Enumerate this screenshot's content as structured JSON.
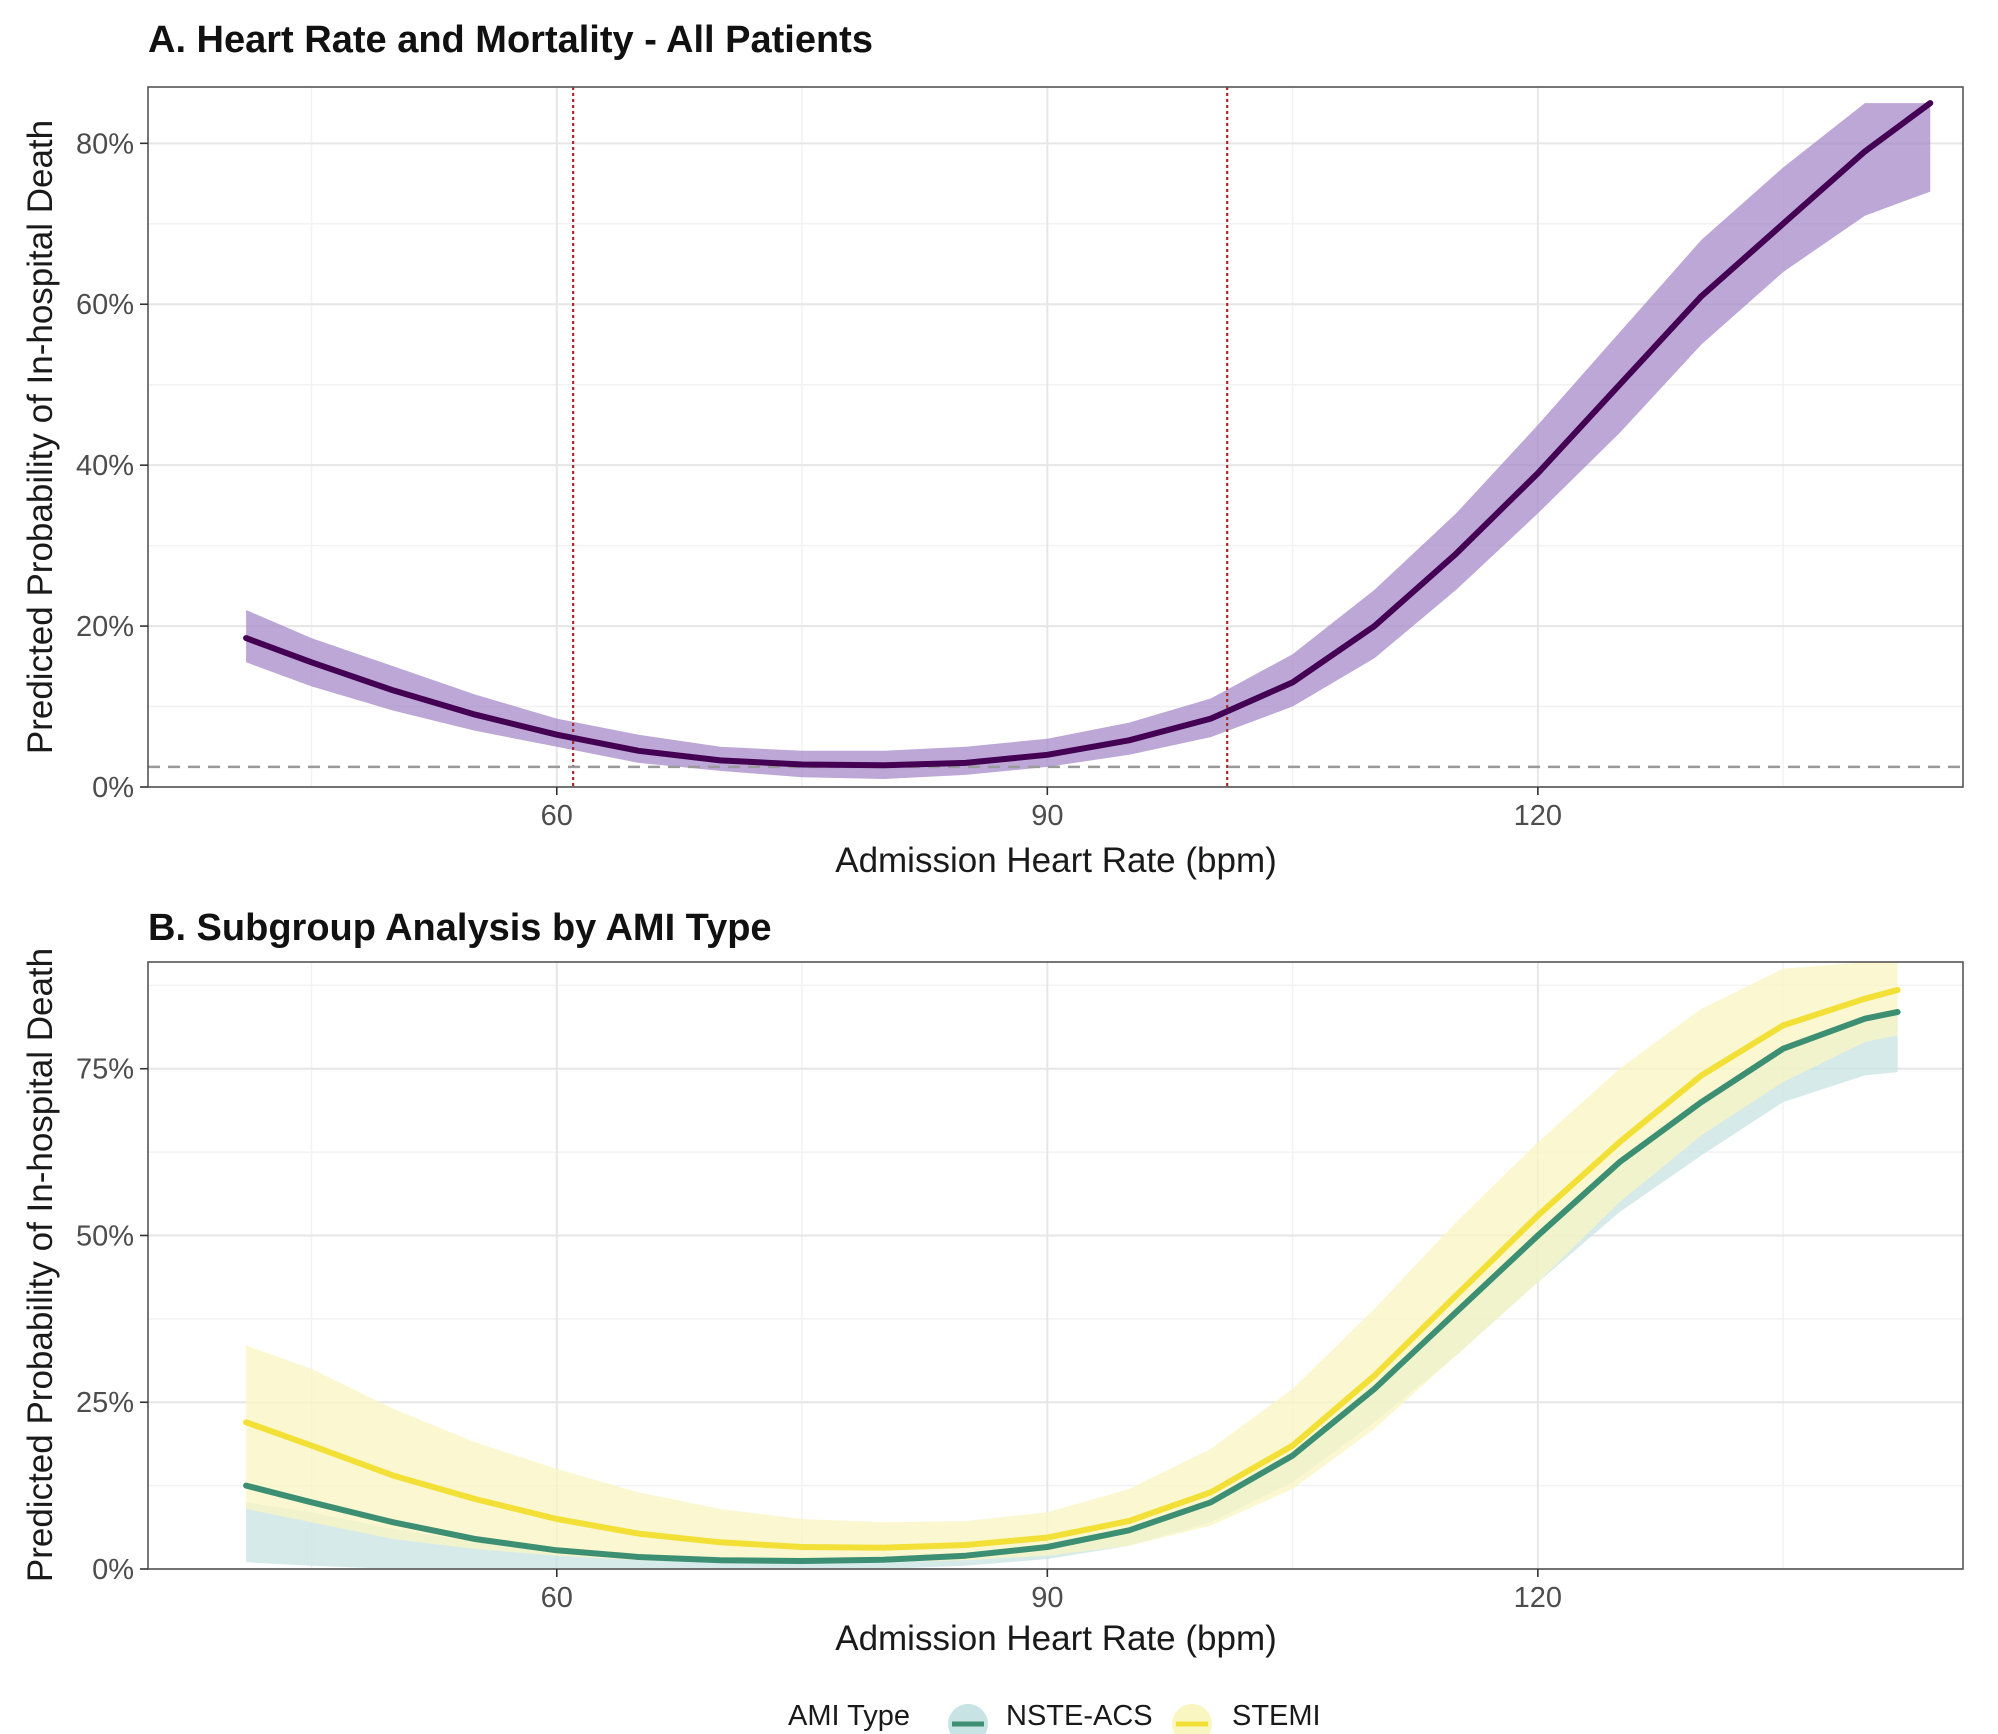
{
  "chart_data": [
    {
      "type": "line",
      "title": "A. Heart Rate and Mortality - All Patients",
      "xlabel": "Admission Heart Rate (bpm)",
      "ylabel": "Predicted Probability of In-hospital Death",
      "xlim": [
        35,
        146
      ],
      "ylim": [
        0,
        0.87
      ],
      "x_ticks": [
        60,
        90,
        120
      ],
      "y_ticks": [
        0,
        0.2,
        0.4,
        0.6,
        0.8
      ],
      "y_tick_labels": [
        "0%",
        "20%",
        "40%",
        "60%",
        "80%"
      ],
      "grid": true,
      "colors": {
        "line": "#440154",
        "band": "#a68ac9"
      },
      "reference_lines": {
        "vertical": [
          61,
          101
        ],
        "vertical_color": "#a52a2a",
        "horizontal": [
          0.025
        ],
        "horizontal_color": "#9a9a9a"
      },
      "series": [
        {
          "x": [
            41,
            45,
            50,
            55,
            60,
            65,
            70,
            75,
            80,
            85,
            90,
            95,
            100,
            105,
            110,
            115,
            120,
            125,
            130,
            135,
            140,
            144
          ],
          "y": [
            0.185,
            0.155,
            0.12,
            0.09,
            0.065,
            0.045,
            0.033,
            0.028,
            0.027,
            0.03,
            0.04,
            0.058,
            0.085,
            0.13,
            0.2,
            0.29,
            0.39,
            0.5,
            0.61,
            0.7,
            0.79,
            0.85
          ],
          "lower": [
            0.155,
            0.125,
            0.095,
            0.07,
            0.05,
            0.03,
            0.02,
            0.012,
            0.01,
            0.015,
            0.025,
            0.04,
            0.062,
            0.1,
            0.16,
            0.245,
            0.34,
            0.44,
            0.55,
            0.64,
            0.71,
            0.74
          ],
          "upper": [
            0.22,
            0.185,
            0.15,
            0.115,
            0.085,
            0.065,
            0.05,
            0.045,
            0.045,
            0.05,
            0.06,
            0.08,
            0.11,
            0.165,
            0.245,
            0.34,
            0.45,
            0.565,
            0.68,
            0.77,
            0.85,
            0.85
          ]
        }
      ]
    },
    {
      "type": "line",
      "title": "B. Subgroup Analysis by AMI Type",
      "xlabel": "Admission Heart Rate (bpm)",
      "ylabel": "Predicted Probability of In-hospital Death",
      "xlim": [
        35,
        146
      ],
      "ylim": [
        0,
        0.91
      ],
      "x_ticks": [
        60,
        90,
        120
      ],
      "y_ticks": [
        0,
        0.25,
        0.5,
        0.75
      ],
      "y_tick_labels": [
        "0%",
        "25%",
        "50%",
        "75%"
      ],
      "grid": true,
      "legend": {
        "title": "AMI Type",
        "position": "bottom",
        "items": [
          "NSTE-ACS",
          "STEMI"
        ]
      },
      "series": [
        {
          "name": "NSTE-ACS",
          "color": "#3d8f73",
          "band_color": "#c8e3e3",
          "x": [
            41,
            45,
            50,
            55,
            60,
            65,
            70,
            75,
            80,
            85,
            90,
            95,
            100,
            105,
            110,
            115,
            120,
            125,
            130,
            135,
            140,
            142
          ],
          "y": [
            0.125,
            0.1,
            0.07,
            0.045,
            0.028,
            0.018,
            0.013,
            0.012,
            0.014,
            0.02,
            0.033,
            0.058,
            0.1,
            0.17,
            0.27,
            0.385,
            0.5,
            0.61,
            0.7,
            0.78,
            0.825,
            0.835
          ],
          "lower": [
            0.01,
            0.005,
            0.0,
            0.0,
            0.0,
            0.0,
            0.0,
            0.0,
            0.0,
            0.005,
            0.015,
            0.035,
            0.07,
            0.13,
            0.22,
            0.32,
            0.43,
            0.535,
            0.62,
            0.7,
            0.74,
            0.745
          ],
          "upper": [
            0.1,
            0.085,
            0.06,
            0.04,
            0.028,
            0.02,
            0.016,
            0.016,
            0.018,
            0.024,
            0.036,
            0.06,
            0.1,
            0.17,
            0.27,
            0.385,
            0.5,
            0.61,
            0.7,
            0.78,
            0.82,
            0.83
          ]
        },
        {
          "name": "STEMI",
          "color": "#f2e037",
          "band_color": "#faf6c2",
          "x": [
            41,
            45,
            50,
            55,
            60,
            65,
            70,
            75,
            80,
            85,
            90,
            95,
            100,
            105,
            110,
            115,
            120,
            125,
            130,
            135,
            140,
            142
          ],
          "y": [
            0.22,
            0.185,
            0.14,
            0.105,
            0.075,
            0.053,
            0.04,
            0.033,
            0.032,
            0.036,
            0.047,
            0.072,
            0.115,
            0.185,
            0.29,
            0.41,
            0.53,
            0.64,
            0.74,
            0.815,
            0.855,
            0.868
          ],
          "lower": [
            0.09,
            0.07,
            0.045,
            0.03,
            0.02,
            0.013,
            0.01,
            0.009,
            0.01,
            0.013,
            0.02,
            0.035,
            0.065,
            0.12,
            0.21,
            0.32,
            0.43,
            0.55,
            0.65,
            0.73,
            0.79,
            0.8
          ],
          "upper": [
            0.335,
            0.3,
            0.24,
            0.19,
            0.15,
            0.115,
            0.09,
            0.075,
            0.07,
            0.072,
            0.085,
            0.12,
            0.18,
            0.27,
            0.39,
            0.52,
            0.64,
            0.75,
            0.84,
            0.9,
            0.91,
            0.91
          ]
        }
      ]
    }
  ]
}
